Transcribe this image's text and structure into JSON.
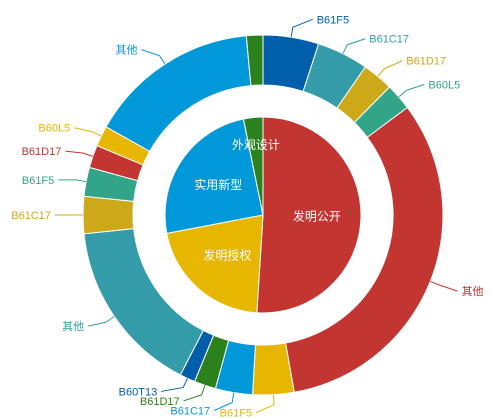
{
  "chart_data": {
    "type": "pie",
    "variant": "nested-donut",
    "inner": {
      "slices": [
        {
          "label": "发明公开",
          "value": 51.0,
          "color": "#c23531"
        },
        {
          "label": "发明授权",
          "value": 21.0,
          "color": "#e6b600"
        },
        {
          "label": "实用新型",
          "value": 24.8,
          "color": "#0098d9"
        },
        {
          "label": "外观设计",
          "value": 3.2,
          "color": "#2b821d"
        }
      ]
    },
    "outer": {
      "slices": [
        {
          "label": "B61F5",
          "value": 5.4,
          "color": "#005eaa"
        },
        {
          "label": "B61C17",
          "value": 5.0,
          "color": "#339ca8"
        },
        {
          "label": "B61D17",
          "value": 3.0,
          "color": "#cda819"
        },
        {
          "label": "B60L5",
          "value": 2.6,
          "color": "#32a487"
        },
        {
          "label": "其他",
          "value": 35.0,
          "color": "#c23531"
        },
        {
          "label": "B61F5",
          "value": 4.0,
          "color": "#e6b600"
        },
        {
          "label": "B61C17",
          "value": 3.6,
          "color": "#0098d9"
        },
        {
          "label": "B61D17",
          "value": 2.1,
          "color": "#2b821d"
        },
        {
          "label": "B60T13",
          "value": 1.5,
          "color": "#005eaa"
        },
        {
          "label": "其他",
          "value": 17.0,
          "color": "#339ca8"
        },
        {
          "label": "B61C17",
          "value": 3.6,
          "color": "#cda819"
        },
        {
          "label": "B61F5",
          "value": 2.8,
          "color": "#32a487"
        },
        {
          "label": "B61D17",
          "value": 2.2,
          "color": "#c23531"
        },
        {
          "label": "B60L5",
          "value": 2.0,
          "color": "#e6b600"
        },
        {
          "label": "其他",
          "value": 16.6,
          "color": "#0098d9"
        },
        {
          "label": "",
          "value": 1.6,
          "color": "#2b821d"
        }
      ]
    }
  }
}
